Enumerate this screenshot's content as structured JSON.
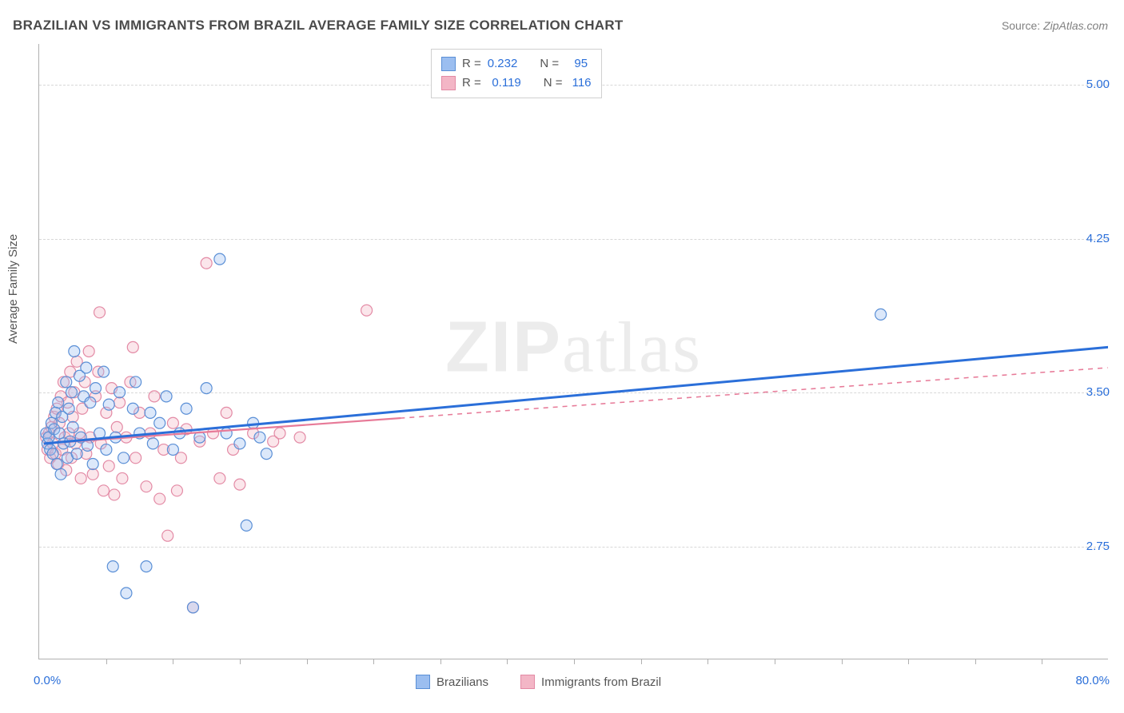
{
  "title": "BRAZILIAN VS IMMIGRANTS FROM BRAZIL AVERAGE FAMILY SIZE CORRELATION CHART",
  "source_prefix": "Source: ",
  "source_name": "ZipAtlas.com",
  "ylabel": "Average Family Size",
  "watermark_bold": "ZIP",
  "watermark_light": "atlas",
  "chart": {
    "type": "scatter",
    "xlim": [
      0,
      80
    ],
    "ylim": [
      2.2,
      5.2
    ],
    "x_tick_label_left": "0.0%",
    "x_tick_label_right": "80.0%",
    "x_minor_ticks_pct": [
      5,
      10,
      15,
      20,
      25,
      30,
      35,
      40,
      45,
      50,
      55,
      60,
      65,
      70,
      75
    ],
    "y_gridlines": [
      2.75,
      3.5,
      4.25,
      5.0
    ],
    "y_tick_labels": [
      "2.75",
      "3.50",
      "4.25",
      "5.00"
    ],
    "background_color": "#ffffff",
    "grid_color": "#d8d8d8",
    "axis_color": "#b0b0b0",
    "label_color": "#555555",
    "tick_label_color": "#2b6fd9",
    "title_color": "#4a4a4a",
    "title_fontsize": 17,
    "label_fontsize": 15,
    "marker_radius": 7,
    "marker_fill_opacity": 0.35,
    "marker_stroke_width": 1.2,
    "series": [
      {
        "name": "Brazilians",
        "color_fill": "#9bbef0",
        "color_stroke": "#5a8fd6",
        "stats": {
          "R": "0.232",
          "N": "95"
        },
        "trend": {
          "x0": 0.4,
          "y0": 3.25,
          "x1": 80,
          "y1": 3.72,
          "solid_until_x": 80,
          "width": 3,
          "color": "#2b6fd9"
        },
        "points": [
          [
            0.5,
            3.3
          ],
          [
            0.6,
            3.25
          ],
          [
            0.7,
            3.28
          ],
          [
            0.8,
            3.22
          ],
          [
            0.9,
            3.35
          ],
          [
            1.0,
            3.2
          ],
          [
            1.1,
            3.32
          ],
          [
            1.2,
            3.4
          ],
          [
            1.3,
            3.15
          ],
          [
            1.4,
            3.45
          ],
          [
            1.5,
            3.3
          ],
          [
            1.6,
            3.1
          ],
          [
            1.7,
            3.38
          ],
          [
            1.8,
            3.25
          ],
          [
            2.0,
            3.55
          ],
          [
            2.1,
            3.18
          ],
          [
            2.2,
            3.42
          ],
          [
            2.3,
            3.26
          ],
          [
            2.4,
            3.5
          ],
          [
            2.5,
            3.33
          ],
          [
            2.6,
            3.7
          ],
          [
            2.8,
            3.2
          ],
          [
            3.0,
            3.58
          ],
          [
            3.1,
            3.28
          ],
          [
            3.3,
            3.48
          ],
          [
            3.5,
            3.62
          ],
          [
            3.6,
            3.24
          ],
          [
            3.8,
            3.45
          ],
          [
            4.0,
            3.15
          ],
          [
            4.2,
            3.52
          ],
          [
            4.5,
            3.3
          ],
          [
            4.8,
            3.6
          ],
          [
            5.0,
            3.22
          ],
          [
            5.2,
            3.44
          ],
          [
            5.5,
            2.65
          ],
          [
            5.7,
            3.28
          ],
          [
            6.0,
            3.5
          ],
          [
            6.3,
            3.18
          ],
          [
            6.5,
            2.52
          ],
          [
            7.0,
            3.42
          ],
          [
            7.2,
            3.55
          ],
          [
            7.5,
            3.3
          ],
          [
            8.0,
            2.65
          ],
          [
            8.3,
            3.4
          ],
          [
            8.5,
            3.25
          ],
          [
            9.0,
            3.35
          ],
          [
            9.5,
            3.48
          ],
          [
            10.0,
            3.22
          ],
          [
            10.5,
            3.3
          ],
          [
            11.0,
            3.42
          ],
          [
            11.5,
            2.45
          ],
          [
            12.0,
            3.28
          ],
          [
            12.5,
            3.52
          ],
          [
            13.5,
            4.15
          ],
          [
            14.0,
            3.3
          ],
          [
            15.0,
            3.25
          ],
          [
            15.5,
            2.85
          ],
          [
            16.0,
            3.35
          ],
          [
            16.5,
            3.28
          ],
          [
            17.0,
            3.2
          ],
          [
            63.0,
            3.88
          ]
        ]
      },
      {
        "name": "Immigrants from Brazil",
        "color_fill": "#f3b6c6",
        "color_stroke": "#e38aa5",
        "stats": {
          "R": "0.119",
          "N": "116"
        },
        "trend": {
          "x0": 0.4,
          "y0": 3.25,
          "x1": 80,
          "y1": 3.62,
          "solid_until_x": 27,
          "width": 2.2,
          "color": "#e77a98",
          "dash_color": "#e77a98"
        },
        "points": [
          [
            0.5,
            3.28
          ],
          [
            0.6,
            3.22
          ],
          [
            0.7,
            3.3
          ],
          [
            0.8,
            3.18
          ],
          [
            0.9,
            3.33
          ],
          [
            1.0,
            3.25
          ],
          [
            1.1,
            3.38
          ],
          [
            1.2,
            3.2
          ],
          [
            1.3,
            3.42
          ],
          [
            1.4,
            3.15
          ],
          [
            1.5,
            3.35
          ],
          [
            1.6,
            3.48
          ],
          [
            1.7,
            3.22
          ],
          [
            1.8,
            3.55
          ],
          [
            1.9,
            3.28
          ],
          [
            2.0,
            3.12
          ],
          [
            2.1,
            3.45
          ],
          [
            2.2,
            3.3
          ],
          [
            2.3,
            3.6
          ],
          [
            2.4,
            3.18
          ],
          [
            2.5,
            3.38
          ],
          [
            2.6,
            3.5
          ],
          [
            2.7,
            3.25
          ],
          [
            2.8,
            3.65
          ],
          [
            3.0,
            3.3
          ],
          [
            3.1,
            3.08
          ],
          [
            3.2,
            3.42
          ],
          [
            3.4,
            3.55
          ],
          [
            3.5,
            3.2
          ],
          [
            3.7,
            3.7
          ],
          [
            3.8,
            3.28
          ],
          [
            4.0,
            3.1
          ],
          [
            4.2,
            3.48
          ],
          [
            4.4,
            3.6
          ],
          [
            4.5,
            3.89
          ],
          [
            4.6,
            3.25
          ],
          [
            4.8,
            3.02
          ],
          [
            5.0,
            3.4
          ],
          [
            5.2,
            3.14
          ],
          [
            5.4,
            3.52
          ],
          [
            5.6,
            3.0
          ],
          [
            5.8,
            3.33
          ],
          [
            6.0,
            3.45
          ],
          [
            6.2,
            3.08
          ],
          [
            6.5,
            3.28
          ],
          [
            6.8,
            3.55
          ],
          [
            7.0,
            3.72
          ],
          [
            7.2,
            3.18
          ],
          [
            7.5,
            3.4
          ],
          [
            8.0,
            3.04
          ],
          [
            8.3,
            3.3
          ],
          [
            8.6,
            3.48
          ],
          [
            9.0,
            2.98
          ],
          [
            9.3,
            3.22
          ],
          [
            9.6,
            2.8
          ],
          [
            10.0,
            3.35
          ],
          [
            10.3,
            3.02
          ],
          [
            10.6,
            3.18
          ],
          [
            11.0,
            3.32
          ],
          [
            11.5,
            2.45
          ],
          [
            12.0,
            3.26
          ],
          [
            12.5,
            4.13
          ],
          [
            13.0,
            3.3
          ],
          [
            13.5,
            3.08
          ],
          [
            14.0,
            3.4
          ],
          [
            14.5,
            3.22
          ],
          [
            15.0,
            3.05
          ],
          [
            16.0,
            3.3
          ],
          [
            17.5,
            3.26
          ],
          [
            18.0,
            3.3
          ],
          [
            19.5,
            3.28
          ],
          [
            24.5,
            3.9
          ]
        ]
      }
    ],
    "stats_box": {
      "R_label": "R =",
      "N_label": "N ="
    },
    "bottom_legend": [
      {
        "label": "Brazilians",
        "swatch_fill": "#9bbef0",
        "swatch_stroke": "#5a8fd6"
      },
      {
        "label": "Immigrants from Brazil",
        "swatch_fill": "#f3b6c6",
        "swatch_stroke": "#e38aa5"
      }
    ]
  }
}
